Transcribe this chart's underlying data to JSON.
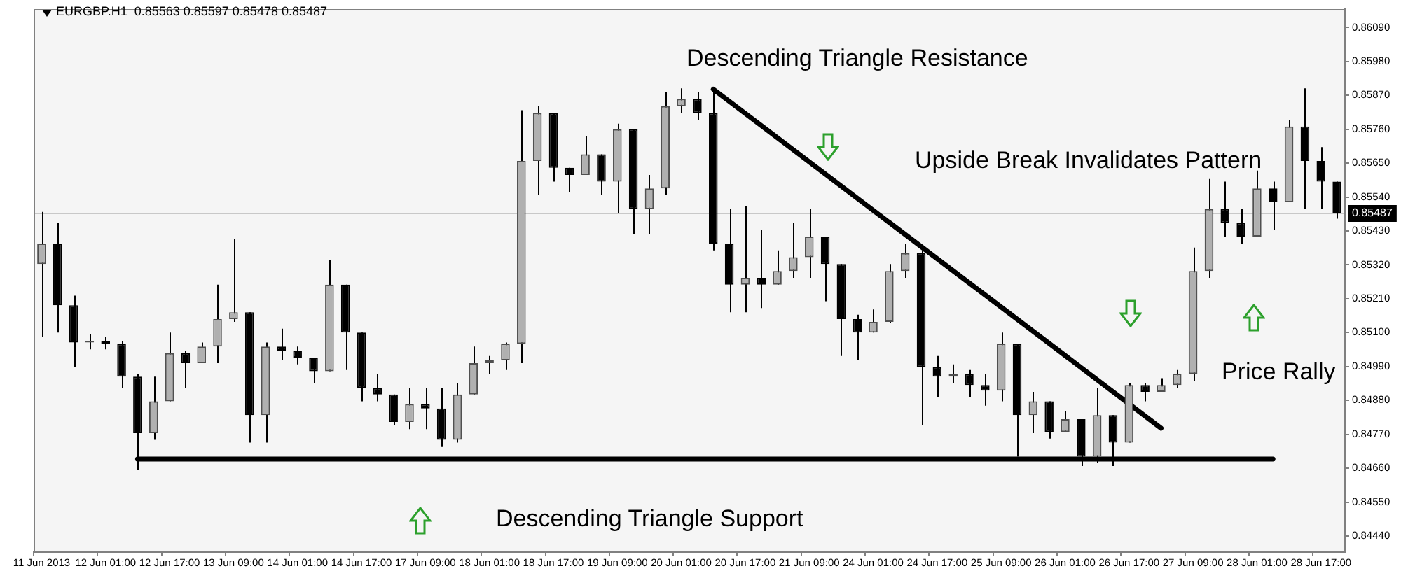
{
  "chart_data": {
    "type": "candlestick",
    "title": "EURGBP.H1  0.85563 0.85597 0.85478 0.85487",
    "categories": [
      "11 Jun 2013",
      null,
      null,
      null,
      "12 Jun 01:00",
      null,
      null,
      null,
      "12 Jun 17:00",
      null,
      null,
      null,
      "13 Jun 09:00",
      null,
      null,
      null,
      "14 Jun 01:00",
      null,
      null,
      null,
      "14 Jun 17:00",
      null,
      null,
      null,
      "17 Jun 09:00",
      null,
      null,
      null,
      "18 Jun 01:00",
      null,
      null,
      null,
      "18 Jun 17:00",
      null,
      null,
      null,
      "19 Jun 09:00",
      null,
      null,
      null,
      "20 Jun 01:00",
      null,
      null,
      null,
      "20 Jun 17:00",
      null,
      null,
      null,
      "21 Jun 09:00",
      null,
      null,
      null,
      "24 Jun 01:00",
      null,
      null,
      null,
      "24 Jun 17:00",
      null,
      null,
      null,
      "25 Jun 09:00",
      null,
      null,
      null,
      "26 Jun 01:00",
      null,
      null,
      null,
      "26 Jun 17:00",
      null,
      null,
      null,
      "27 Jun 09:00",
      null,
      null,
      null,
      "28 Jun 01:00",
      null,
      null,
      null,
      "28 Jun 17:00",
      null
    ],
    "ohlc": [
      [
        0.85323,
        0.85492,
        0.85086,
        0.85389
      ],
      [
        0.85389,
        0.85456,
        0.851,
        0.85189
      ],
      [
        0.85189,
        0.8522,
        0.84988,
        0.85068
      ],
      [
        0.85068,
        0.85095,
        0.85046,
        0.85073
      ],
      [
        0.85073,
        0.85086,
        0.85046,
        0.85064
      ],
      [
        0.85064,
        0.85073,
        0.84921,
        0.84957
      ],
      [
        0.84957,
        0.84966,
        0.84654,
        0.84774
      ],
      [
        0.84774,
        0.84957,
        0.84752,
        0.84877
      ],
      [
        0.84877,
        0.851,
        0.84877,
        0.85033
      ],
      [
        0.85033,
        0.85042,
        0.84921,
        0.85001
      ],
      [
        0.85001,
        0.85068,
        0.85001,
        0.85055
      ],
      [
        0.85055,
        0.85256,
        0.85001,
        0.85144
      ],
      [
        0.85144,
        0.85403,
        0.85135,
        0.85166
      ],
      [
        0.85166,
        0.85166,
        0.84743,
        0.84832
      ],
      [
        0.84832,
        0.85068,
        0.84743,
        0.85055
      ],
      [
        0.85055,
        0.85113,
        0.8501,
        0.85042
      ],
      [
        0.85042,
        0.85055,
        0.84997,
        0.85019
      ],
      [
        0.85019,
        0.85019,
        0.84935,
        0.84975
      ],
      [
        0.84975,
        0.85336,
        0.84975,
        0.85256
      ],
      [
        0.85256,
        0.85256,
        0.84979,
        0.851
      ],
      [
        0.851,
        0.851,
        0.84877,
        0.84921
      ],
      [
        0.84921,
        0.84966,
        0.84877,
        0.84899
      ],
      [
        0.84899,
        0.84899,
        0.84801,
        0.8481
      ],
      [
        0.8481,
        0.84921,
        0.84787,
        0.84868
      ],
      [
        0.84868,
        0.84921,
        0.84787,
        0.84854
      ],
      [
        0.84854,
        0.84921,
        0.84729,
        0.84752
      ],
      [
        0.84752,
        0.84935,
        0.84743,
        0.84899
      ],
      [
        0.84899,
        0.85055,
        0.84899,
        0.85001
      ],
      [
        0.85001,
        0.85024,
        0.84966,
        0.8501
      ],
      [
        0.8501,
        0.85068,
        0.84979,
        0.85064
      ],
      [
        0.85064,
        0.85822,
        0.85001,
        0.85657
      ],
      [
        0.85657,
        0.85835,
        0.85546,
        0.85813
      ],
      [
        0.85813,
        0.85813,
        0.8559,
        0.85635
      ],
      [
        0.85635,
        0.85635,
        0.85555,
        0.85612
      ],
      [
        0.85612,
        0.85737,
        0.85612,
        0.85679
      ],
      [
        0.85679,
        0.85679,
        0.85546,
        0.8559
      ],
      [
        0.8559,
        0.85778,
        0.85488,
        0.8576
      ],
      [
        0.8576,
        0.8576,
        0.85421,
        0.85501
      ],
      [
        0.85501,
        0.85612,
        0.85421,
        0.85568
      ],
      [
        0.85568,
        0.8588,
        0.85546,
        0.85835
      ],
      [
        0.85835,
        0.85893,
        0.85813,
        0.85858
      ],
      [
        0.85858,
        0.8588,
        0.85791,
        0.85813
      ],
      [
        0.85813,
        0.85893,
        0.85367,
        0.85389
      ],
      [
        0.85389,
        0.85501,
        0.85166,
        0.85256
      ],
      [
        0.85256,
        0.8551,
        0.85166,
        0.85278
      ],
      [
        0.85278,
        0.85434,
        0.8518,
        0.85256
      ],
      [
        0.85256,
        0.85367,
        0.85256,
        0.853
      ],
      [
        0.853,
        0.85456,
        0.85278,
        0.85345
      ],
      [
        0.85345,
        0.85501,
        0.85278,
        0.85412
      ],
      [
        0.85412,
        0.85412,
        0.85202,
        0.85323
      ],
      [
        0.85323,
        0.85323,
        0.85024,
        0.85144
      ],
      [
        0.85144,
        0.85158,
        0.8501,
        0.851
      ],
      [
        0.851,
        0.85175,
        0.851,
        0.85135
      ],
      [
        0.85135,
        0.85323,
        0.85131,
        0.853
      ],
      [
        0.853,
        0.85389,
        0.85278,
        0.85358
      ],
      [
        0.85358,
        0.85367,
        0.84801,
        0.84988
      ],
      [
        0.84988,
        0.85024,
        0.8489,
        0.84957
      ],
      [
        0.84957,
        0.84997,
        0.84935,
        0.84966
      ],
      [
        0.84966,
        0.84979,
        0.8489,
        0.8493
      ],
      [
        0.8493,
        0.84966,
        0.84863,
        0.84912
      ],
      [
        0.84912,
        0.851,
        0.84877,
        0.85064
      ],
      [
        0.85064,
        0.85064,
        0.84698,
        0.84832
      ],
      [
        0.84832,
        0.84908,
        0.84774,
        0.84877
      ],
      [
        0.84877,
        0.84877,
        0.84756,
        0.84778
      ],
      [
        0.84778,
        0.84845,
        0.84778,
        0.84819
      ],
      [
        0.84819,
        0.84819,
        0.84667,
        0.84698
      ],
      [
        0.84698,
        0.84921,
        0.84676,
        0.84832
      ],
      [
        0.84832,
        0.84832,
        0.84667,
        0.84743
      ],
      [
        0.84743,
        0.84935,
        0.84743,
        0.8493
      ],
      [
        0.8493,
        0.84935,
        0.84877,
        0.84908
      ],
      [
        0.84908,
        0.84952,
        0.84908,
        0.8493
      ],
      [
        0.8493,
        0.84979,
        0.84921,
        0.84966
      ],
      [
        0.84966,
        0.85376,
        0.84943,
        0.853
      ],
      [
        0.853,
        0.85599,
        0.85278,
        0.85501
      ],
      [
        0.85501,
        0.8559,
        0.85412,
        0.85456
      ],
      [
        0.85456,
        0.85501,
        0.85389,
        0.85412
      ],
      [
        0.85412,
        0.85626,
        0.85412,
        0.85568
      ],
      [
        0.85568,
        0.8559,
        0.85434,
        0.85523
      ],
      [
        0.85523,
        0.85791,
        0.85523,
        0.85769
      ],
      [
        0.85769,
        0.85893,
        0.85501,
        0.85657
      ],
      [
        0.85657,
        0.85702,
        0.85501,
        0.8559
      ],
      [
        0.8559,
        0.8559,
        0.8547,
        0.85487
      ]
    ],
    "series": [
      {
        "type": "line",
        "color": "#000000",
        "values": [
          null,
          null,
          null,
          null,
          null,
          null,
          null,
          null,
          null,
          null,
          null,
          null,
          null,
          null,
          null,
          null,
          null,
          null,
          null,
          null,
          null,
          null,
          null,
          null,
          null,
          null,
          null,
          null,
          null,
          null,
          null,
          null,
          null,
          null,
          null,
          null,
          null,
          null,
          null,
          null,
          null,
          null,
          0.8589,
          null,
          null,
          null,
          null,
          null,
          null,
          null,
          null,
          null,
          null,
          null,
          null,
          null,
          null,
          null,
          null,
          null,
          null,
          null,
          null,
          null,
          null,
          null,
          null,
          null,
          null,
          null,
          0.8479,
          null,
          null,
          null,
          null,
          null,
          null,
          null,
          null,
          null,
          null,
          null
        ]
      },
      {
        "type": "line",
        "color": "#000000",
        "values": [
          null,
          null,
          null,
          null,
          null,
          null,
          0.8469,
          null,
          null,
          null,
          null,
          null,
          null,
          null,
          null,
          null,
          null,
          null,
          null,
          null,
          null,
          null,
          null,
          null,
          null,
          null,
          null,
          null,
          null,
          null,
          null,
          null,
          null,
          null,
          null,
          null,
          null,
          null,
          null,
          null,
          null,
          null,
          null,
          null,
          null,
          null,
          null,
          null,
          null,
          null,
          null,
          null,
          null,
          null,
          null,
          null,
          null,
          null,
          null,
          null,
          null,
          null,
          null,
          null,
          null,
          null,
          null,
          null,
          null,
          null,
          null,
          null,
          null,
          null,
          null,
          null,
          null,
          0.8469,
          null,
          null,
          null,
          null
        ]
      }
    ],
    "ylim": [
      0.8439,
      0.8615
    ],
    "yticks": [
      {
        "value": 0.8444,
        "label": "0.84440"
      },
      {
        "value": 0.8455,
        "label": "0.84550"
      },
      {
        "value": 0.8466,
        "label": "0.84660"
      },
      {
        "value": 0.8477,
        "label": "0.84770"
      },
      {
        "value": 0.8488,
        "label": "0.84880"
      },
      {
        "value": 0.8499,
        "label": "0.84990"
      },
      {
        "value": 0.851,
        "label": "0.85100"
      },
      {
        "value": 0.8521,
        "label": "0.85210"
      },
      {
        "value": 0.8532,
        "label": "0.85320"
      },
      {
        "value": 0.8543,
        "label": "0.85430"
      },
      {
        "value": 0.8554,
        "label": "0.85540"
      },
      {
        "value": 0.8565,
        "label": "0.85650"
      },
      {
        "value": 0.8576,
        "label": "0.85760"
      },
      {
        "value": 0.8587,
        "label": "0.85870"
      },
      {
        "value": 0.8598,
        "label": "0.85980"
      },
      {
        "value": 0.8609,
        "label": "0.86090"
      }
    ],
    "ref_lines": [
      {
        "axis": "y",
        "value": 0.85487,
        "label": "0.85487",
        "color": "#c8c8c8"
      }
    ],
    "annotations": [
      "Descending Triangle Resistance",
      "Upside Break Invalidates Pattern",
      "Price Rally",
      "Descending Triangle Support"
    ]
  }
}
